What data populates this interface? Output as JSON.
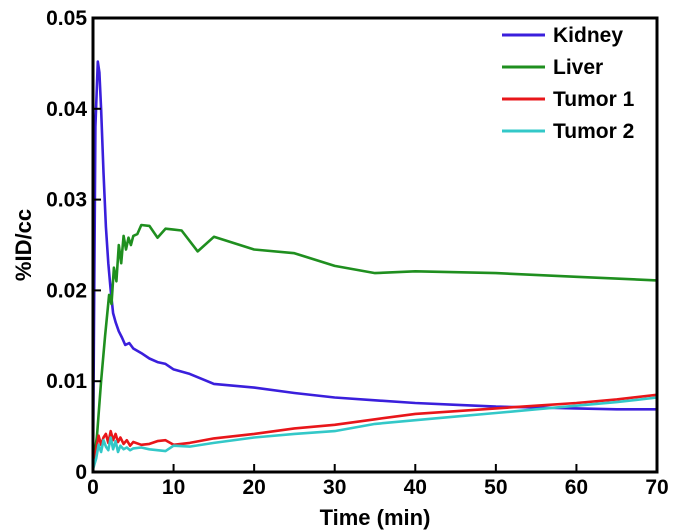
{
  "chart_data": {
    "type": "line",
    "title": "",
    "xlabel": "Time (min)",
    "ylabel": "%ID/cc",
    "xlim": [
      0,
      70
    ],
    "ylim": [
      0,
      0.05
    ],
    "xticks": [
      0,
      10,
      20,
      30,
      40,
      50,
      60,
      70
    ],
    "yticks": [
      0,
      0.01,
      0.02,
      0.03,
      0.04,
      0.05
    ],
    "xtick_labels": [
      "0",
      "10",
      "20",
      "30",
      "40",
      "50",
      "60",
      "70"
    ],
    "ytick_labels": [
      "0",
      "0.01",
      "0.02",
      "0.03",
      "0.04",
      "0.05"
    ],
    "grid": false,
    "legend_position": "top-right",
    "series": [
      {
        "name": "Kidney",
        "color": "#3a1fdc",
        "x": [
          0,
          0.3,
          0.6,
          0.8,
          1.0,
          1.3,
          1.6,
          1.9,
          2.2,
          2.5,
          2.8,
          3.2,
          3.6,
          4.0,
          4.5,
          5.0,
          6,
          7,
          8,
          9,
          10,
          12,
          15,
          20,
          25,
          30,
          35,
          40,
          45,
          50,
          55,
          60,
          65,
          70
        ],
        "y": [
          0.0005,
          0.038,
          0.0452,
          0.044,
          0.04,
          0.033,
          0.027,
          0.023,
          0.02,
          0.0175,
          0.0165,
          0.0155,
          0.0148,
          0.014,
          0.0142,
          0.0136,
          0.0131,
          0.0125,
          0.0121,
          0.0119,
          0.0113,
          0.0108,
          0.0097,
          0.0093,
          0.0087,
          0.0082,
          0.0079,
          0.0076,
          0.0074,
          0.0072,
          0.0071,
          0.007,
          0.0069,
          0.0069
        ]
      },
      {
        "name": "Liver",
        "color": "#1f8f1f",
        "x": [
          0,
          0.5,
          1.0,
          1.5,
          2.0,
          2.3,
          2.6,
          2.9,
          3.2,
          3.5,
          3.8,
          4.1,
          4.4,
          4.7,
          5.0,
          5.5,
          6.0,
          7.0,
          8.0,
          9.0,
          10,
          11,
          13,
          15,
          20,
          25,
          30,
          35,
          40,
          50,
          60,
          70
        ],
        "y": [
          0.0005,
          0.004,
          0.01,
          0.015,
          0.0195,
          0.0185,
          0.0225,
          0.021,
          0.025,
          0.023,
          0.026,
          0.0245,
          0.0258,
          0.025,
          0.026,
          0.0262,
          0.0272,
          0.0271,
          0.0258,
          0.0268,
          0.0267,
          0.0266,
          0.0243,
          0.0259,
          0.0245,
          0.0241,
          0.0227,
          0.0219,
          0.0221,
          0.0219,
          0.0215,
          0.0211
        ]
      },
      {
        "name": "Tumor 1",
        "color": "#e8161a",
        "x": [
          0,
          0.4,
          0.7,
          1.0,
          1.3,
          1.6,
          1.9,
          2.2,
          2.5,
          2.8,
          3.1,
          3.4,
          3.8,
          4.2,
          4.6,
          5,
          6,
          7,
          8,
          9,
          10,
          12,
          15,
          20,
          25,
          30,
          35,
          40,
          45,
          50,
          55,
          60,
          65,
          70
        ],
        "y": [
          0.0005,
          0.0025,
          0.004,
          0.003,
          0.0038,
          0.0042,
          0.0032,
          0.0045,
          0.0035,
          0.0042,
          0.0033,
          0.0038,
          0.0031,
          0.0035,
          0.0029,
          0.0033,
          0.003,
          0.0031,
          0.0034,
          0.0035,
          0.003,
          0.0032,
          0.0037,
          0.0042,
          0.0048,
          0.0052,
          0.0058,
          0.0064,
          0.0067,
          0.007,
          0.0073,
          0.0076,
          0.008,
          0.0085
        ]
      },
      {
        "name": "Tumor 2",
        "color": "#33c8c8",
        "x": [
          0,
          0.4,
          0.7,
          1.0,
          1.3,
          1.6,
          1.9,
          2.2,
          2.5,
          2.8,
          3.1,
          3.4,
          3.8,
          4.2,
          4.6,
          5,
          6,
          7,
          8,
          9,
          10,
          12,
          15,
          20,
          25,
          30,
          35,
          40,
          45,
          50,
          55,
          60,
          65,
          70
        ],
        "y": [
          0.0003,
          0.0015,
          0.003,
          0.0022,
          0.0035,
          0.0028,
          0.0024,
          0.0038,
          0.0025,
          0.0034,
          0.0022,
          0.0029,
          0.0025,
          0.0027,
          0.0024,
          0.0026,
          0.0027,
          0.0025,
          0.0024,
          0.0023,
          0.0029,
          0.0028,
          0.0032,
          0.0038,
          0.0042,
          0.0045,
          0.0053,
          0.0057,
          0.0061,
          0.0065,
          0.0069,
          0.0073,
          0.0077,
          0.0082
        ]
      }
    ]
  }
}
